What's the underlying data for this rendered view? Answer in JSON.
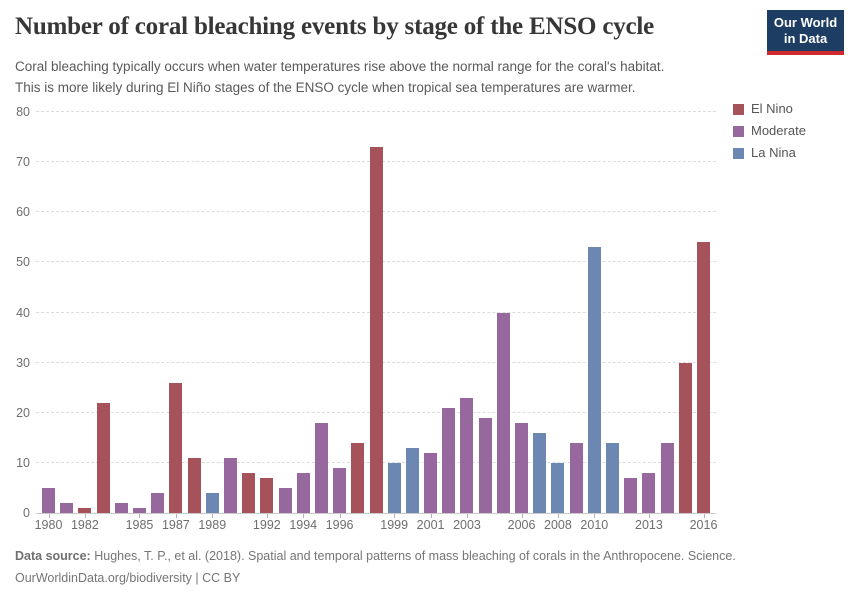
{
  "header": {
    "title": "Number of coral bleaching events by stage of the ENSO cycle",
    "subtitle_line1": "Coral bleaching typically occurs when water temperatures rise above the normal range for the coral's habitat.",
    "subtitle_line2": "This is more likely during El Niño stages of the ENSO cycle when tropical sea temperatures are warmer.",
    "logo": {
      "line1": "Our World",
      "line2": "in Data",
      "bg": "#1d3d63",
      "stripe": "#cf2a2e"
    }
  },
  "legend": {
    "items": [
      {
        "label": "El Nino",
        "color": "#A5525A"
      },
      {
        "label": "Moderate",
        "color": "#96689E"
      },
      {
        "label": "La Nina",
        "color": "#6D87B3"
      }
    ]
  },
  "chart_data": {
    "type": "bar",
    "title": "Number of coral bleaching events by stage of the ENSO cycle",
    "xlabel": "",
    "ylabel": "",
    "ylim": [
      0,
      80
    ],
    "ytick_step": 10,
    "grid": "horizontal-dashed",
    "legend_position": "top-right",
    "colors": {
      "El Nino": "#A5525A",
      "Moderate": "#96689E",
      "La Nina": "#6D87B3"
    },
    "xticks": [
      1980,
      1982,
      1985,
      1987,
      1989,
      1992,
      1994,
      1996,
      1999,
      2001,
      2003,
      2006,
      2008,
      2010,
      2013,
      2016
    ],
    "points": [
      {
        "year": 1980,
        "value": 5,
        "category": "Moderate"
      },
      {
        "year": 1981,
        "value": 2,
        "category": "Moderate"
      },
      {
        "year": 1982,
        "value": 1,
        "category": "El Nino"
      },
      {
        "year": 1983,
        "value": 22,
        "category": "El Nino"
      },
      {
        "year": 1984,
        "value": 2,
        "category": "Moderate"
      },
      {
        "year": 1985,
        "value": 1,
        "category": "Moderate"
      },
      {
        "year": 1986,
        "value": 4,
        "category": "Moderate"
      },
      {
        "year": 1987,
        "value": 26,
        "category": "El Nino"
      },
      {
        "year": 1988,
        "value": 11,
        "category": "El Nino"
      },
      {
        "year": 1989,
        "value": 4,
        "category": "La Nina"
      },
      {
        "year": 1990,
        "value": 11,
        "category": "Moderate"
      },
      {
        "year": 1991,
        "value": 8,
        "category": "El Nino"
      },
      {
        "year": 1992,
        "value": 7,
        "category": "El Nino"
      },
      {
        "year": 1993,
        "value": 5,
        "category": "Moderate"
      },
      {
        "year": 1994,
        "value": 8,
        "category": "Moderate"
      },
      {
        "year": 1995,
        "value": 18,
        "category": "Moderate"
      },
      {
        "year": 1996,
        "value": 9,
        "category": "Moderate"
      },
      {
        "year": 1997,
        "value": 14,
        "category": "El Nino"
      },
      {
        "year": 1998,
        "value": 73,
        "category": "El Nino"
      },
      {
        "year": 1999,
        "value": 10,
        "category": "La Nina"
      },
      {
        "year": 2000,
        "value": 13,
        "category": "La Nina"
      },
      {
        "year": 2001,
        "value": 12,
        "category": "Moderate"
      },
      {
        "year": 2002,
        "value": 21,
        "category": "Moderate"
      },
      {
        "year": 2003,
        "value": 23,
        "category": "Moderate"
      },
      {
        "year": 2004,
        "value": 19,
        "category": "Moderate"
      },
      {
        "year": 2005,
        "value": 40,
        "category": "Moderate"
      },
      {
        "year": 2006,
        "value": 18,
        "category": "Moderate"
      },
      {
        "year": 2007,
        "value": 16,
        "category": "La Nina"
      },
      {
        "year": 2008,
        "value": 10,
        "category": "La Nina"
      },
      {
        "year": 2009,
        "value": 14,
        "category": "Moderate"
      },
      {
        "year": 2010,
        "value": 53,
        "category": "La Nina"
      },
      {
        "year": 2011,
        "value": 14,
        "category": "La Nina"
      },
      {
        "year": 2012,
        "value": 7,
        "category": "Moderate"
      },
      {
        "year": 2013,
        "value": 8,
        "category": "Moderate"
      },
      {
        "year": 2014,
        "value": 14,
        "category": "Moderate"
      },
      {
        "year": 2015,
        "value": 30,
        "category": "El Nino"
      },
      {
        "year": 2016,
        "value": 54,
        "category": "El Nino"
      }
    ]
  },
  "footer": {
    "datasource_label": "Data source:",
    "datasource_text": "Hughes, T. P., et al. (2018). Spatial and temporal patterns of mass bleaching of corals in the Anthropocene. Science.",
    "link": "OurWorldinData.org/biodiversity",
    "separator": "|",
    "license": "CC BY"
  }
}
